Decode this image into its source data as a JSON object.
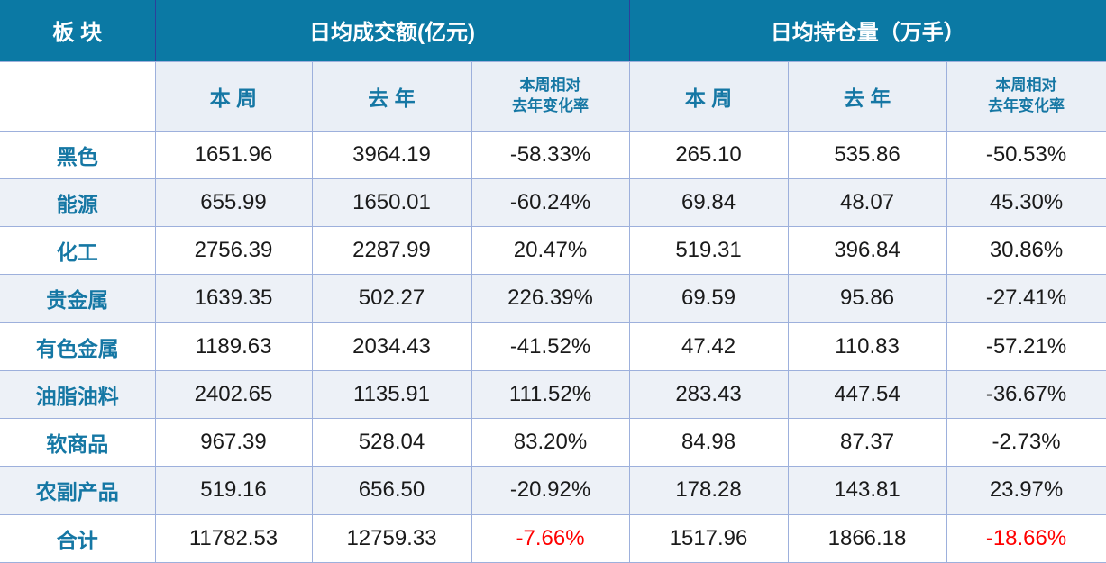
{
  "colors": {
    "header_bg": "#0b79a4",
    "header_text": "#ffffff",
    "accent_teal_text": "#1577a4",
    "alt_row_bg": "#edf1f7",
    "subheader_bg": "#eaeff6",
    "grid_border": "#9db0dc",
    "header_divider": "#2e3f9b",
    "negative_total_red": "#ff0000"
  },
  "table": {
    "sector_header": "板 块",
    "group_headers": {
      "turnover": "日均成交额(亿元)",
      "open_interest": "日均持仓量（万手）"
    },
    "sub_headers": {
      "week": "本 周",
      "last_year": "去 年",
      "change_line1": "本周相对",
      "change_line2": "去年变化率"
    },
    "rows": [
      {
        "sector": "黑色",
        "values": [
          "1651.96",
          "3964.19",
          "-58.33%",
          "265.10",
          "535.86",
          "-50.53%"
        ]
      },
      {
        "sector": "能源",
        "values": [
          "655.99",
          "1650.01",
          "-60.24%",
          "69.84",
          "48.07",
          "45.30%"
        ]
      },
      {
        "sector": "化工",
        "values": [
          "2756.39",
          "2287.99",
          "20.47%",
          "519.31",
          "396.84",
          "30.86%"
        ]
      },
      {
        "sector": "贵金属",
        "values": [
          "1639.35",
          "502.27",
          "226.39%",
          "69.59",
          "95.86",
          "-27.41%"
        ]
      },
      {
        "sector": "有色金属",
        "values": [
          "1189.63",
          "2034.43",
          "-41.52%",
          "47.42",
          "110.83",
          "-57.21%"
        ]
      },
      {
        "sector": "油脂油料",
        "values": [
          "2402.65",
          "1135.91",
          "111.52%",
          "283.43",
          "447.54",
          "-36.67%"
        ]
      },
      {
        "sector": "软商品",
        "values": [
          "967.39",
          "528.04",
          "83.20%",
          "84.98",
          "87.37",
          "-2.73%"
        ]
      },
      {
        "sector": "农副产品",
        "values": [
          "519.16",
          "656.50",
          "-20.92%",
          "178.28",
          "143.81",
          "23.97%"
        ]
      }
    ],
    "total_row": {
      "sector": "合计",
      "values": [
        "11782.53",
        "12759.33",
        "-7.66%",
        "1517.96",
        "1866.18",
        "-18.66%"
      ],
      "red_value_indexes": [
        2,
        5
      ]
    }
  },
  "chart_data": {
    "type": "table",
    "column_groups": [
      "日均成交额(亿元)",
      "日均持仓量（万手）"
    ],
    "columns": [
      "板块",
      "日均成交额-本周",
      "日均成交额-去年",
      "日均成交额-本周相对去年变化率",
      "日均持仓量-本周",
      "日均持仓量-去年",
      "日均持仓量-本周相对去年变化率"
    ],
    "rows": [
      [
        "黑色",
        1651.96,
        3964.19,
        "-58.33%",
        265.1,
        535.86,
        "-50.53%"
      ],
      [
        "能源",
        655.99,
        1650.01,
        "-60.24%",
        69.84,
        48.07,
        "45.30%"
      ],
      [
        "化工",
        2756.39,
        2287.99,
        "20.47%",
        519.31,
        396.84,
        "30.86%"
      ],
      [
        "贵金属",
        1639.35,
        502.27,
        "226.39%",
        69.59,
        95.86,
        "-27.41%"
      ],
      [
        "有色金属",
        1189.63,
        2034.43,
        "-41.52%",
        47.42,
        110.83,
        "-57.21%"
      ],
      [
        "油脂油料",
        2402.65,
        1135.91,
        "111.52%",
        283.43,
        447.54,
        "-36.67%"
      ],
      [
        "软商品",
        967.39,
        528.04,
        "83.20%",
        84.98,
        87.37,
        "-2.73%"
      ],
      [
        "农副产品",
        519.16,
        656.5,
        "-20.92%",
        178.28,
        143.81,
        "23.97%"
      ],
      [
        "合计",
        11782.53,
        12759.33,
        "-7.66%",
        1517.96,
        1866.18,
        "-18.66%"
      ]
    ]
  }
}
